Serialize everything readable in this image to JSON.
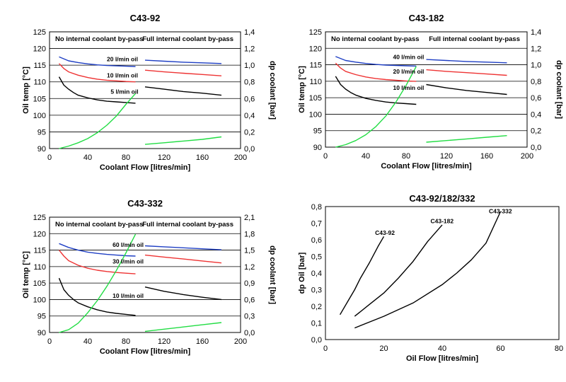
{
  "chart_data": [
    {
      "type": "line",
      "title": "C43-92",
      "xlabel": "Coolant Flow  [litres/min]",
      "ylabel": "Oil temp [°C]",
      "y2label": "dp coolant [bar]",
      "xlim": [
        0,
        200
      ],
      "xticks": [
        0,
        40,
        80,
        120,
        160,
        200
      ],
      "ylim": [
        90,
        125
      ],
      "yticks": [
        90,
        95,
        100,
        105,
        110,
        115,
        120,
        125
      ],
      "y2lim": [
        0,
        1.4
      ],
      "y2ticks": [
        "0,0",
        "0,2",
        "0,4",
        "0,6",
        "0,8",
        "1,0",
        "1,2",
        "1,4"
      ],
      "grid": "horizontal",
      "header_left": "No internal coolant by-pass",
      "header_right": "Full internal coolant by-pass",
      "series": [
        {
          "color": "#1f3fc4",
          "axis": "y",
          "x": [
            10,
            20,
            30,
            40,
            50,
            60,
            70,
            80,
            90
          ],
          "y": [
            117.5,
            116.3,
            115.8,
            115.4,
            115.1,
            114.9,
            114.8,
            114.7,
            114.6
          ]
        },
        {
          "color": "#1f3fc4",
          "axis": "y",
          "x": [
            100,
            120,
            140,
            160,
            180
          ],
          "y": [
            116.5,
            116.2,
            115.9,
            115.7,
            115.5
          ]
        },
        {
          "color": "#ee3333",
          "axis": "y",
          "x": [
            10,
            15,
            20,
            30,
            40,
            50,
            60,
            70,
            80,
            90
          ],
          "y": [
            115.5,
            114.0,
            113.0,
            112.0,
            111.3,
            110.8,
            110.5,
            110.3,
            110.1,
            110.0
          ]
        },
        {
          "color": "#ee3333",
          "axis": "y",
          "x": [
            100,
            120,
            140,
            160,
            180
          ],
          "y": [
            113.5,
            113.0,
            112.6,
            112.2,
            111.8
          ]
        },
        {
          "color": "#000000",
          "axis": "y",
          "x": [
            10,
            15,
            20,
            25,
            30,
            40,
            50,
            60,
            70,
            80,
            90
          ],
          "y": [
            111.5,
            109.0,
            107.8,
            106.8,
            106.0,
            105.2,
            104.6,
            104.2,
            104.0,
            103.8,
            103.6
          ]
        },
        {
          "color": "#000000",
          "axis": "y",
          "x": [
            100,
            120,
            140,
            160,
            180
          ],
          "y": [
            108.5,
            107.8,
            107.1,
            106.6,
            106.0
          ]
        },
        {
          "color": "#22dd44",
          "axis": "y2",
          "x": [
            10,
            20,
            30,
            40,
            50,
            60,
            70,
            80,
            90
          ],
          "y": [
            0.0,
            0.03,
            0.07,
            0.12,
            0.19,
            0.28,
            0.39,
            0.53,
            0.66
          ]
        },
        {
          "color": "#22dd44",
          "axis": "y2",
          "x": [
            100,
            120,
            140,
            160,
            180
          ],
          "y": [
            0.05,
            0.07,
            0.09,
            0.11,
            0.14
          ]
        }
      ],
      "annotations": [
        {
          "text": "20 l/min oil",
          "x": 60,
          "y": 116.2
        },
        {
          "text": "10 l/min oil",
          "x": 60,
          "y": 111.3
        },
        {
          "text": "5 l/min oil",
          "x": 64,
          "y": 106.4
        }
      ]
    },
    {
      "type": "line",
      "title": "C43-182",
      "xlabel": "Coolant Flow  [litres/min]",
      "ylabel": "Oil temp [°C]",
      "y2label": "dp coolant [bar]",
      "xlim": [
        0,
        200
      ],
      "xticks": [
        0,
        40,
        80,
        120,
        160,
        200
      ],
      "ylim": [
        90,
        125
      ],
      "yticks": [
        90,
        95,
        100,
        105,
        110,
        115,
        120,
        125
      ],
      "y2lim": [
        0,
        1.4
      ],
      "y2ticks": [
        "0,0",
        "0,2",
        "0,4",
        "0,6",
        "0,8",
        "1,0",
        "1,2",
        "1,4"
      ],
      "grid": "horizontal",
      "header_left": "No internal coolant by-pass",
      "header_right": "Full internal coolant by-pass",
      "series": [
        {
          "color": "#1f3fc4",
          "axis": "y",
          "x": [
            10,
            20,
            30,
            40,
            50,
            60,
            70,
            80,
            90
          ],
          "y": [
            117.5,
            116.3,
            115.8,
            115.4,
            115.1,
            114.9,
            114.8,
            114.7,
            114.6
          ]
        },
        {
          "color": "#1f3fc4",
          "axis": "y",
          "x": [
            100,
            120,
            140,
            160,
            180
          ],
          "y": [
            116.6,
            116.3,
            116.0,
            115.8,
            115.6
          ]
        },
        {
          "color": "#ee3333",
          "axis": "y",
          "x": [
            10,
            15,
            20,
            30,
            40,
            50,
            60,
            70,
            80,
            90
          ],
          "y": [
            115.5,
            114.0,
            113.0,
            112.0,
            111.3,
            110.8,
            110.5,
            110.3,
            110.1,
            110.0
          ]
        },
        {
          "color": "#ee3333",
          "axis": "y",
          "x": [
            100,
            120,
            140,
            160,
            180
          ],
          "y": [
            113.5,
            113.0,
            112.6,
            112.2,
            111.8
          ]
        },
        {
          "color": "#000000",
          "axis": "y",
          "x": [
            10,
            15,
            20,
            25,
            30,
            40,
            50,
            60,
            70,
            80,
            90
          ],
          "y": [
            111.5,
            109.0,
            107.6,
            106.6,
            105.8,
            104.8,
            104.2,
            103.7,
            103.4,
            103.2,
            103.0
          ]
        },
        {
          "color": "#000000",
          "axis": "y",
          "x": [
            100,
            120,
            140,
            160,
            180
          ],
          "y": [
            109.0,
            108.0,
            107.2,
            106.6,
            106.0
          ]
        },
        {
          "color": "#22dd44",
          "axis": "y2",
          "x": [
            10,
            20,
            30,
            40,
            50,
            60,
            70,
            80,
            90
          ],
          "y": [
            0.0,
            0.03,
            0.08,
            0.15,
            0.25,
            0.38,
            0.55,
            0.75,
            0.98
          ]
        },
        {
          "color": "#22dd44",
          "axis": "y2",
          "x": [
            100,
            120,
            140,
            160,
            180
          ],
          "y": [
            0.06,
            0.08,
            0.1,
            0.12,
            0.14
          ]
        }
      ],
      "annotations": [
        {
          "text": "40 l/min oil",
          "x": 67,
          "y": 116.7
        },
        {
          "text": "20 l/min oil",
          "x": 67,
          "y": 112.3
        },
        {
          "text": "10 l/min oil",
          "x": 67,
          "y": 107.4
        }
      ]
    },
    {
      "type": "line",
      "title": "C43-332",
      "xlabel": "Coolant Flow  [litres/min]",
      "ylabel": "Oil temp [°C]",
      "y2label": "dp coolant [bar]",
      "xlim": [
        0,
        200
      ],
      "xticks": [
        0,
        40,
        80,
        120,
        160,
        200
      ],
      "ylim": [
        90,
        125
      ],
      "yticks": [
        90,
        95,
        100,
        105,
        110,
        115,
        120,
        125
      ],
      "y2lim": [
        0,
        2.1
      ],
      "y2ticks": [
        "0,0",
        "0,3",
        "0,6",
        "0,9",
        "1,2",
        "1,5",
        "1,8",
        "2,1"
      ],
      "grid": "horizontal",
      "header_left": "No internal coolant by-pass",
      "header_right": "Full internal coolant by-pass",
      "series": [
        {
          "color": "#1f3fc4",
          "axis": "y",
          "x": [
            10,
            20,
            30,
            40,
            50,
            60,
            70,
            80,
            90
          ],
          "y": [
            117.0,
            115.8,
            115.0,
            114.4,
            114.0,
            113.7,
            113.5,
            113.3,
            113.2
          ]
        },
        {
          "color": "#1f3fc4",
          "axis": "y",
          "x": [
            100,
            120,
            140,
            160,
            180
          ],
          "y": [
            116.3,
            116.0,
            115.7,
            115.4,
            115.1
          ]
        },
        {
          "color": "#ee3333",
          "axis": "y",
          "x": [
            10,
            15,
            20,
            30,
            40,
            50,
            60,
            70,
            80,
            90
          ],
          "y": [
            115.0,
            113.2,
            111.8,
            110.4,
            109.5,
            108.9,
            108.5,
            108.2,
            108.0,
            107.8
          ]
        },
        {
          "color": "#ee3333",
          "axis": "y",
          "x": [
            100,
            120,
            140,
            160,
            180
          ],
          "y": [
            113.5,
            112.9,
            112.3,
            111.7,
            111.1
          ]
        },
        {
          "color": "#000000",
          "axis": "y",
          "x": [
            10,
            15,
            20,
            25,
            30,
            40,
            50,
            60,
            70,
            80,
            90
          ],
          "y": [
            106.5,
            103.0,
            101.3,
            100.0,
            99.0,
            97.8,
            96.9,
            96.2,
            95.8,
            95.5,
            95.2
          ]
        },
        {
          "color": "#000000",
          "axis": "y",
          "x": [
            100,
            120,
            140,
            160,
            180
          ],
          "y": [
            103.8,
            102.5,
            101.5,
            100.7,
            100.0
          ]
        },
        {
          "color": "#22dd44",
          "axis": "y2",
          "x": [
            10,
            20,
            30,
            40,
            50,
            60,
            70,
            80,
            90
          ],
          "y": [
            0.0,
            0.05,
            0.17,
            0.36,
            0.58,
            0.84,
            1.13,
            1.45,
            1.79
          ]
        },
        {
          "color": "#22dd44",
          "axis": "y2",
          "x": [
            100,
            120,
            140,
            160,
            180
          ],
          "y": [
            0.02,
            0.06,
            0.1,
            0.14,
            0.18
          ]
        }
      ],
      "annotations": [
        {
          "text": "60 l/min oil",
          "x": 66,
          "y": 116.0
        },
        {
          "text": "30 l/min oil",
          "x": 66,
          "y": 110.9
        },
        {
          "text": "10 l/min oil",
          "x": 66,
          "y": 100.5
        }
      ]
    },
    {
      "type": "line",
      "title": "C43-92/182/332",
      "xlabel": "Oil Flow  [litres/min]",
      "ylabel": "dp Oil [bar]",
      "xlim": [
        0,
        80
      ],
      "xticks": [
        0,
        20,
        40,
        60,
        80
      ],
      "ylim": [
        0,
        0.8
      ],
      "yticks": [
        "0,0",
        "0,1",
        "0,2",
        "0,3",
        "0,4",
        "0,5",
        "0,6",
        "0,7",
        "0,8"
      ],
      "grid": "none",
      "series": [
        {
          "name": "C43-92",
          "color": "#000000",
          "x": [
            5,
            8,
            10,
            12,
            15,
            18,
            20
          ],
          "y": [
            0.15,
            0.24,
            0.3,
            0.37,
            0.46,
            0.56,
            0.62
          ]
        },
        {
          "name": "C43-182",
          "color": "#000000",
          "x": [
            10,
            15,
            20,
            25,
            30,
            35,
            40
          ],
          "y": [
            0.14,
            0.21,
            0.28,
            0.37,
            0.47,
            0.59,
            0.69
          ]
        },
        {
          "name": "C43-332",
          "color": "#000000",
          "x": [
            10,
            20,
            30,
            40,
            45,
            50,
            55,
            60
          ],
          "y": [
            0.07,
            0.14,
            0.22,
            0.33,
            0.4,
            0.48,
            0.58,
            0.77
          ]
        }
      ],
      "annotations": [
        {
          "text": "C43-92",
          "x": 17,
          "y": 0.63
        },
        {
          "text": "C43-182",
          "x": 36,
          "y": 0.7
        },
        {
          "text": "C43-332",
          "x": 56,
          "y": 0.76
        }
      ]
    }
  ]
}
